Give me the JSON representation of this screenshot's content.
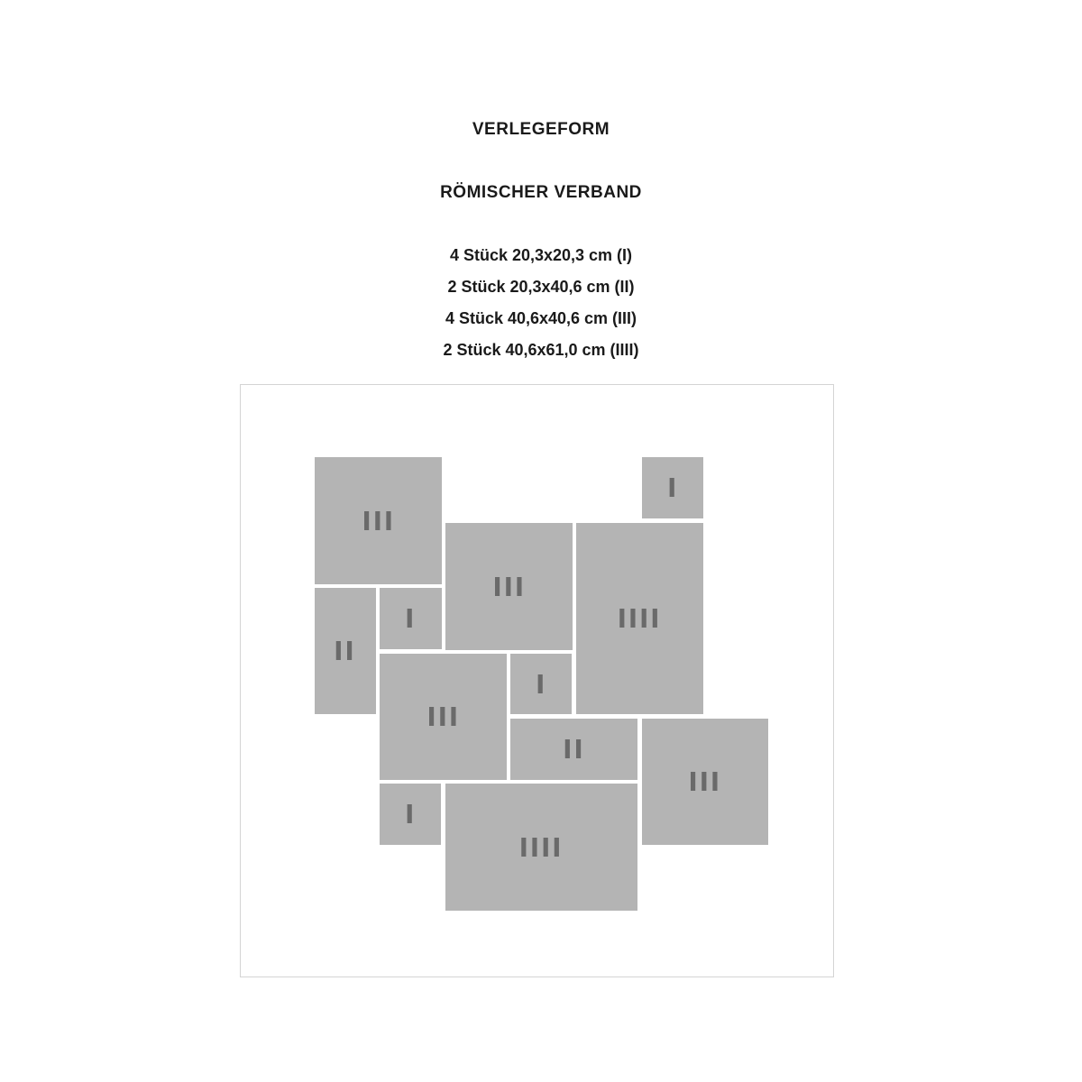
{
  "title": "VERLEGEFORM",
  "subtitle": "RÖMISCHER VERBAND",
  "pieces": [
    "4 Stück 20,3x20,3 cm (I)",
    "2 Stück 20,3x40,6 cm (II)",
    "4 Stück 40,6x40,6 cm (III)",
    "2 Stück 40,6x61,0 cm (IIII)"
  ],
  "tile_color": "#b4b4b4",
  "label_color": "#6a6a6a",
  "tiles": [
    {
      "label": "III"
    },
    {
      "label": "I"
    },
    {
      "label": "III"
    },
    {
      "label": "IIII"
    },
    {
      "label": "II"
    },
    {
      "label": "I"
    },
    {
      "label": "III"
    },
    {
      "label": "I"
    },
    {
      "label": "II"
    },
    {
      "label": "III"
    },
    {
      "label": "I"
    },
    {
      "label": "IIII"
    }
  ]
}
